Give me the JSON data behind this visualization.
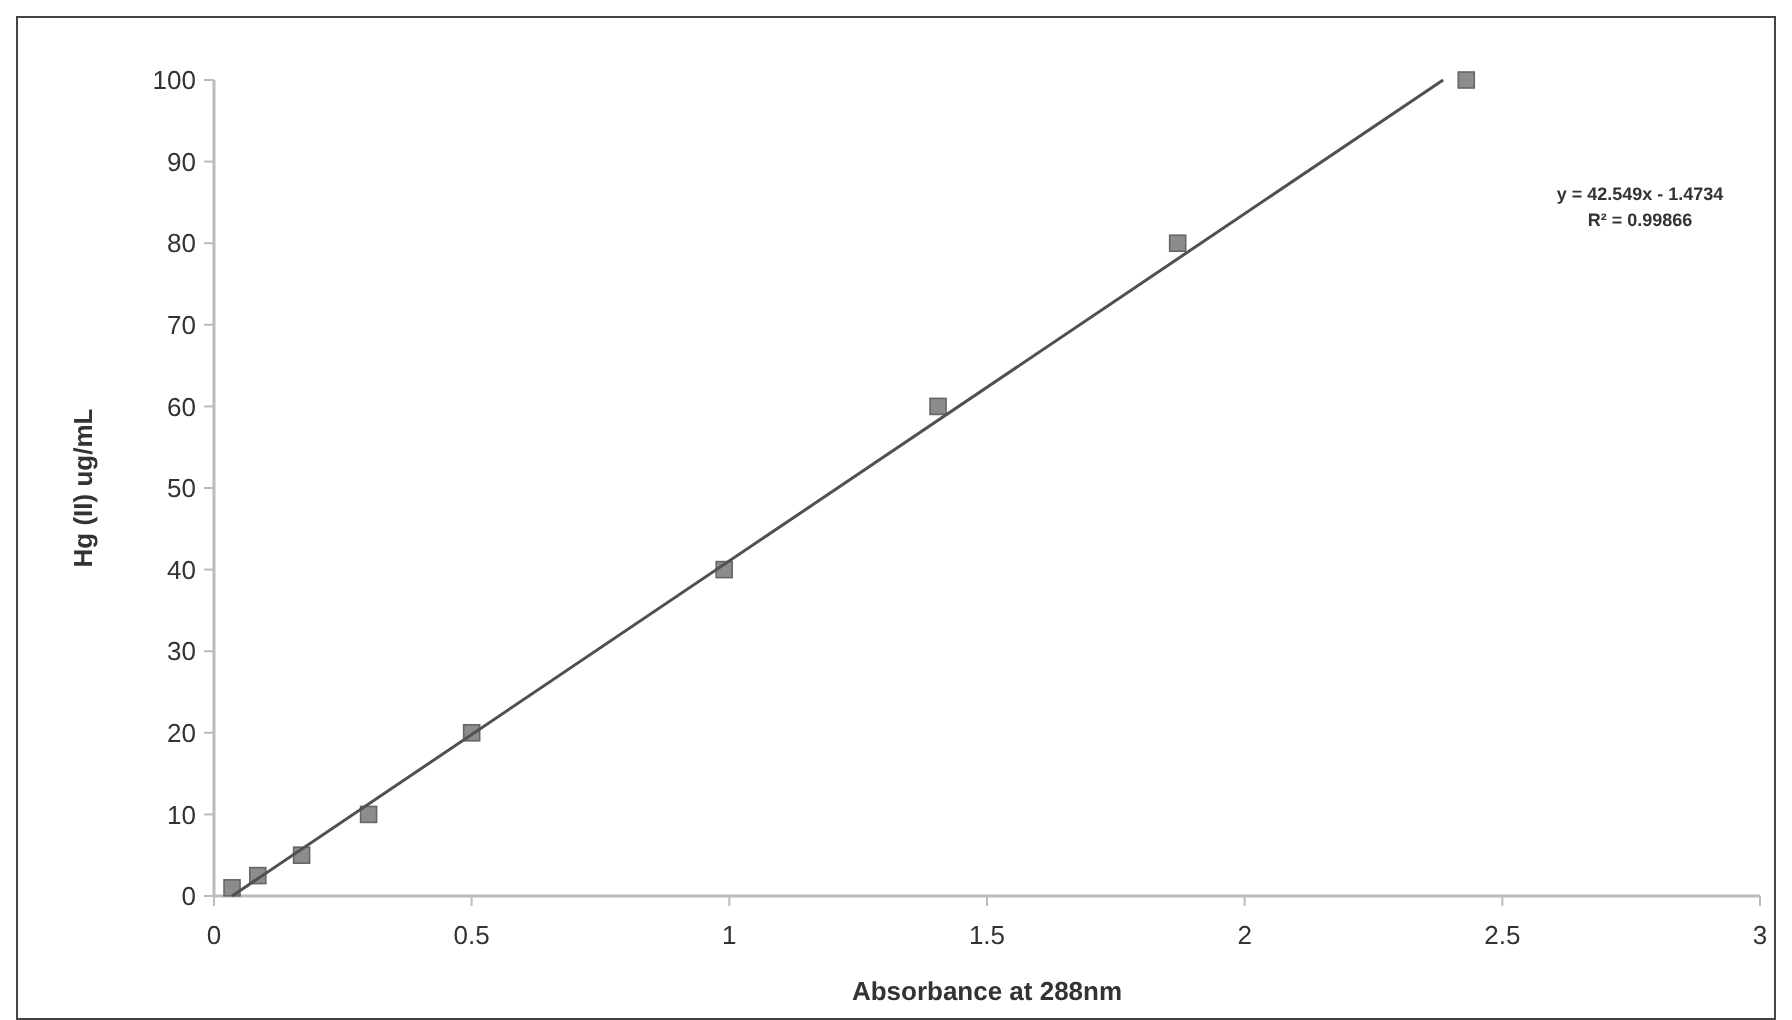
{
  "chart_data": {
    "type": "scatter",
    "xlabel": "Absorbance at 288nm",
    "ylabel": "Hg (II) ug/mL",
    "xlim": [
      0,
      3
    ],
    "xticks": [
      0,
      0.5,
      1,
      1.5,
      2,
      2.5,
      3
    ],
    "ylim": [
      0,
      100
    ],
    "yticks": [
      0,
      10,
      20,
      30,
      40,
      50,
      60,
      70,
      80,
      90,
      100
    ],
    "grid": false,
    "marker": "square",
    "series": [
      {
        "color": "#8c8c8c",
        "x": [
          0.035,
          0.085,
          0.17,
          0.3,
          0.5,
          0.99,
          1.405,
          1.87,
          2.43
        ],
        "values": [
          1,
          2.5,
          5,
          10,
          20,
          40,
          60,
          80,
          100
        ]
      },
      {
        "type": "line",
        "color": "#505050",
        "x": [
          0.035,
          2.385
        ],
        "values": [
          0,
          100
        ],
        "line_style": "solid",
        "marker": "none"
      }
    ],
    "annotations": [
      "y = 42.549x - 1.4734",
      "R² = 0.99866"
    ]
  }
}
